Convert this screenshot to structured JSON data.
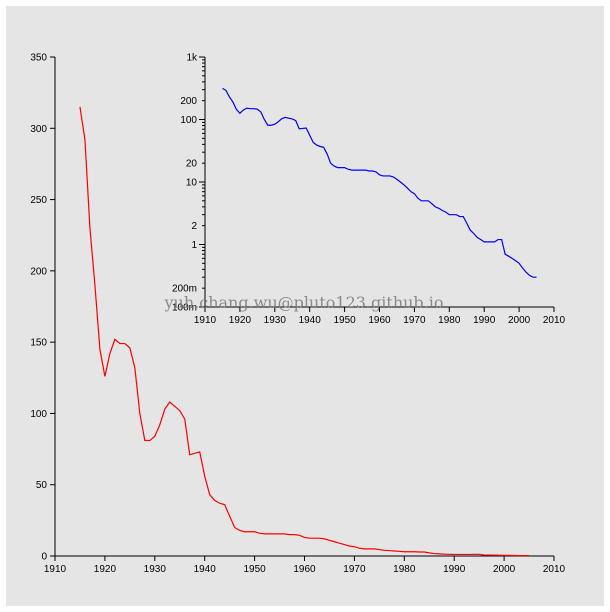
{
  "watermark": "yuh.chang.wu@pluto123.github.io",
  "chart_data": [
    {
      "type": "line",
      "title": "",
      "xlabel": "",
      "ylabel": "",
      "xlim": [
        1910,
        2010
      ],
      "ylim": [
        0,
        350
      ],
      "x_ticks": [
        1910,
        1920,
        1930,
        1940,
        1950,
        1960,
        1970,
        1980,
        1990,
        2000,
        2010
      ],
      "y_ticks": [
        0,
        50,
        100,
        150,
        200,
        250,
        300,
        350
      ],
      "line_color": "#ff0000",
      "series": [
        {
          "x": [
            1915,
            1916,
            1917,
            1918,
            1919,
            1920,
            1921,
            1922,
            1923,
            1924,
            1925,
            1926,
            1927,
            1928,
            1929,
            1930,
            1931,
            1932,
            1933,
            1934,
            1935,
            1936,
            1937,
            1938,
            1939,
            1940,
            1941,
            1942,
            1943,
            1944,
            1945,
            1946,
            1947,
            1948,
            1949,
            1950,
            1951,
            1952,
            1953,
            1954,
            1955,
            1956,
            1957,
            1958,
            1959,
            1960,
            1961,
            1962,
            1963,
            1964,
            1965,
            1966,
            1967,
            1968,
            1969,
            1970,
            1971,
            1972,
            1973,
            1974,
            1975,
            1976,
            1977,
            1978,
            1979,
            1980,
            1981,
            1982,
            1983,
            1984,
            1985,
            1986,
            1987,
            1988,
            1989,
            1990,
            1991,
            1992,
            1993,
            1994,
            1995,
            1996,
            1997,
            1998,
            1999,
            2000,
            2001,
            2002,
            2003,
            2004,
            2005
          ],
          "y": [
            315,
            292,
            230,
            190,
            145,
            126,
            142,
            152,
            149,
            149,
            146,
            132,
            100,
            81,
            81,
            84,
            92,
            103,
            108,
            105,
            102,
            96,
            71,
            72,
            73,
            56,
            43,
            39,
            37,
            36,
            28,
            20,
            18,
            17,
            17,
            17,
            16,
            15.5,
            15.5,
            15.5,
            15.5,
            15.5,
            15,
            15,
            14.5,
            13,
            12.5,
            12.5,
            12.5,
            12,
            11,
            10,
            9,
            8,
            7,
            6.5,
            5.5,
            5,
            5,
            5,
            4.5,
            4,
            3.8,
            3.5,
            3.3,
            3,
            3,
            3,
            2.8,
            2.8,
            2.2,
            1.7,
            1.5,
            1.3,
            1.2,
            1.1,
            1.1,
            1.1,
            1.1,
            1.2,
            1.2,
            0.7,
            0.65,
            0.6,
            0.55,
            0.5,
            0.42,
            0.36,
            0.32,
            0.3,
            0.3
          ]
        }
      ]
    },
    {
      "type": "line",
      "title": "",
      "xlabel": "",
      "ylabel": "",
      "yscale": "log",
      "xlim": [
        1910,
        2010
      ],
      "ylim": [
        0.1,
        1000
      ],
      "x_ticks": [
        1910,
        1920,
        1930,
        1940,
        1950,
        1960,
        1970,
        1980,
        1990,
        2000,
        2010
      ],
      "y_tick_labels": [
        {
          "v": 0.1,
          "t": "100m"
        },
        {
          "v": 0.2,
          "t": "200m"
        },
        {
          "v": 1,
          "t": "1"
        },
        {
          "v": 2,
          "t": "2"
        },
        {
          "v": 10,
          "t": "10"
        },
        {
          "v": 20,
          "t": "20"
        },
        {
          "v": 100,
          "t": "100"
        },
        {
          "v": 200,
          "t": "200"
        },
        {
          "v": 1000,
          "t": "1k"
        }
      ],
      "line_color": "#0000ff",
      "series": [
        {
          "x": [
            1915,
            1916,
            1917,
            1918,
            1919,
            1920,
            1921,
            1922,
            1923,
            1924,
            1925,
            1926,
            1927,
            1928,
            1929,
            1930,
            1931,
            1932,
            1933,
            1934,
            1935,
            1936,
            1937,
            1938,
            1939,
            1940,
            1941,
            1942,
            1943,
            1944,
            1945,
            1946,
            1947,
            1948,
            1949,
            1950,
            1951,
            1952,
            1953,
            1954,
            1955,
            1956,
            1957,
            1958,
            1959,
            1960,
            1961,
            1962,
            1963,
            1964,
            1965,
            1966,
            1967,
            1968,
            1969,
            1970,
            1971,
            1972,
            1973,
            1974,
            1975,
            1976,
            1977,
            1978,
            1979,
            1980,
            1981,
            1982,
            1983,
            1984,
            1985,
            1986,
            1987,
            1988,
            1989,
            1990,
            1991,
            1992,
            1993,
            1994,
            1995,
            1996,
            1997,
            1998,
            1999,
            2000,
            2001,
            2002,
            2003,
            2004,
            2005
          ],
          "y": [
            315,
            292,
            230,
            190,
            145,
            126,
            142,
            152,
            149,
            149,
            146,
            132,
            100,
            81,
            81,
            84,
            92,
            103,
            108,
            105,
            102,
            96,
            71,
            72,
            73,
            56,
            43,
            39,
            37,
            36,
            28,
            20,
            18,
            17,
            17,
            17,
            16,
            15.5,
            15.5,
            15.5,
            15.5,
            15.5,
            15,
            15,
            14.5,
            13,
            12.5,
            12.5,
            12.5,
            12,
            11,
            10,
            9,
            8,
            7,
            6.5,
            5.5,
            5,
            5,
            5,
            4.5,
            4,
            3.8,
            3.5,
            3.3,
            3,
            3,
            3,
            2.8,
            2.8,
            2.2,
            1.7,
            1.5,
            1.3,
            1.2,
            1.1,
            1.1,
            1.1,
            1.1,
            1.2,
            1.2,
            0.7,
            0.65,
            0.6,
            0.55,
            0.5,
            0.42,
            0.36,
            0.32,
            0.3,
            0.3
          ]
        }
      ]
    }
  ]
}
